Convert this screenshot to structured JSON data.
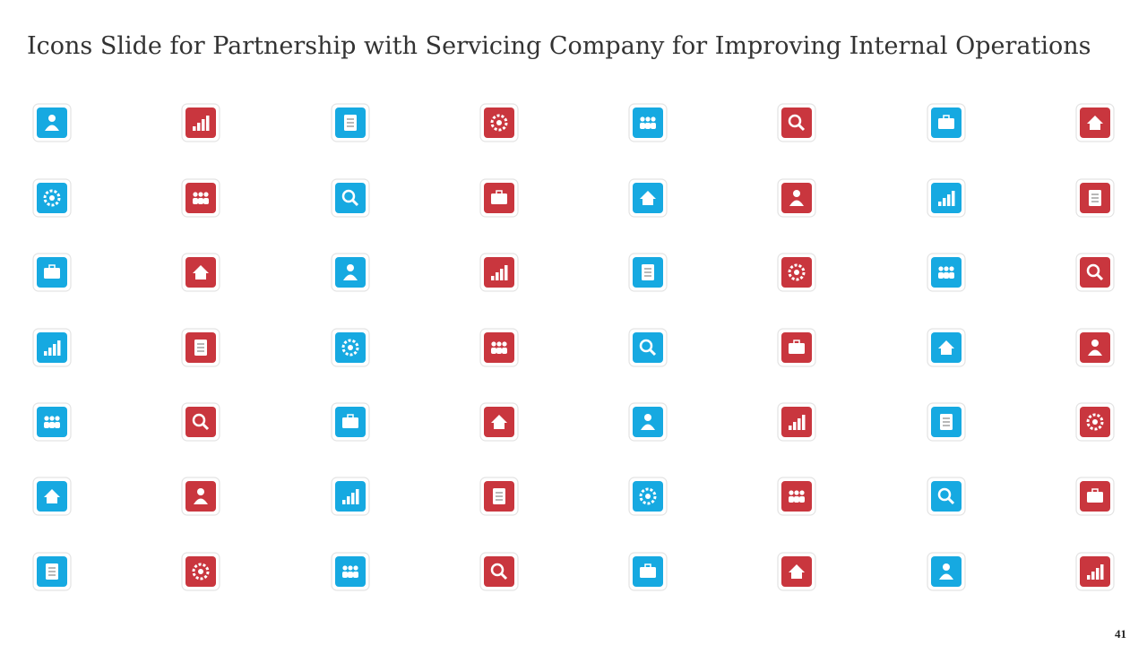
{
  "header": {
    "title": "Icons Slide for Partnership with Servicing Company for Improving Internal Operations"
  },
  "footer": {
    "page_number": "41"
  }
}
